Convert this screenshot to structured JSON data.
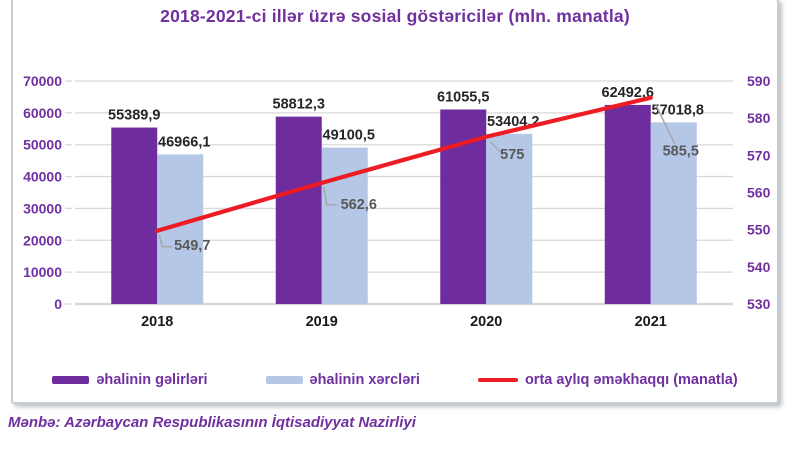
{
  "source": "Mənbə: Azərbaycan Respublikasının İqtisadiyyat Nazirliyi",
  "chart_data": {
    "type": "bar",
    "subtype": "combo-bar-line-dual-axis",
    "title": "2018-2021-ci illər üzrə sosial göstəricilər (mln. manatla)",
    "categories": [
      "2018",
      "2019",
      "2020",
      "2021"
    ],
    "series": [
      {
        "name": "əhalinin gəlirləri",
        "type": "bar",
        "axis": "left",
        "color": "#6E2C9E",
        "values": [
          55389.9,
          58812.3,
          61055.5,
          62492.6
        ],
        "labels": [
          "55389,9",
          "58812,3",
          "61055,5",
          "62492,6"
        ]
      },
      {
        "name": "əhalinin xərcləri",
        "type": "bar",
        "axis": "left",
        "color": "#B4C7E7",
        "values": [
          46966.1,
          49100.5,
          53404.2,
          57018.8
        ],
        "labels": [
          "46966,1",
          "49100,5",
          "53404,2",
          "57018,8"
        ]
      },
      {
        "name": "orta aylıq əməkhaqqı (manatla)",
        "type": "line",
        "axis": "right",
        "color": "#ED1B24",
        "values": [
          549.7,
          562.6,
          575,
          585.5
        ],
        "labels": [
          "549,7",
          "562,6",
          "575",
          "585,5"
        ]
      }
    ],
    "left_axis": {
      "min": 0,
      "max": 70000,
      "step": 10000,
      "ticks": [
        "0",
        "10000",
        "20000",
        "30000",
        "40000",
        "50000",
        "60000",
        "70000"
      ]
    },
    "right_axis": {
      "min": 530,
      "max": 590,
      "step": 10,
      "ticks": [
        "530",
        "540",
        "550",
        "560",
        "570",
        "580",
        "590"
      ]
    },
    "grid": true,
    "legend_position": "bottom",
    "colors": {
      "title_text": "#7030A0",
      "axis_tick_text": "#7030A0",
      "category_text": "#1a1a1a",
      "bar_label_text": "#262626",
      "line_label_text": "#595959",
      "gridline": "#D9D9D9",
      "leader_line": "#A6A6A6",
      "panel_border": "#C9CED4"
    }
  }
}
